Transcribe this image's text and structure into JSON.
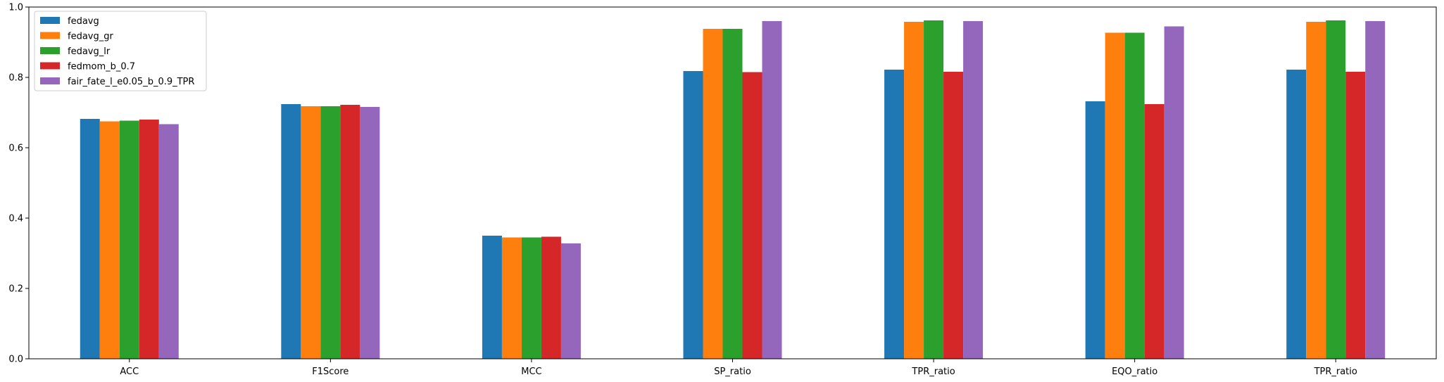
{
  "chart_data": {
    "type": "bar",
    "title": "",
    "xlabel": "",
    "ylabel": "",
    "ylim": [
      0,
      1.0
    ],
    "yticks": [
      0.0,
      0.2,
      0.4,
      0.6,
      0.8,
      1.0
    ],
    "ytick_labels": [
      "0.0",
      "0.2",
      "0.4",
      "0.6",
      "0.8",
      "1.0"
    ],
    "grid": false,
    "legend_position": "top-left",
    "categories": [
      "ACC",
      "F1Score",
      "MCC",
      "SP_ratio",
      "TPR_ratio",
      "EQO_ratio",
      "TPR_ratio"
    ],
    "series": [
      {
        "name": "fedavg",
        "color": "#1f77b4",
        "values": [
          0.682,
          0.724,
          0.35,
          0.818,
          0.822,
          0.732,
          0.822
        ]
      },
      {
        "name": "fedavg_gr",
        "color": "#ff7f0e",
        "values": [
          0.675,
          0.718,
          0.345,
          0.938,
          0.958,
          0.927,
          0.958
        ]
      },
      {
        "name": "fedavg_lr",
        "color": "#2ca02c",
        "values": [
          0.677,
          0.718,
          0.345,
          0.938,
          0.962,
          0.927,
          0.962
        ]
      },
      {
        "name": "fedmom_b_0.7",
        "color": "#d62728",
        "values": [
          0.68,
          0.722,
          0.347,
          0.815,
          0.816,
          0.724,
          0.816
        ]
      },
      {
        "name": "fair_fate_l_e0.05_b_0.9_TPR",
        "color": "#9467bd",
        "values": [
          0.667,
          0.716,
          0.328,
          0.96,
          0.96,
          0.945,
          0.96
        ]
      }
    ]
  }
}
